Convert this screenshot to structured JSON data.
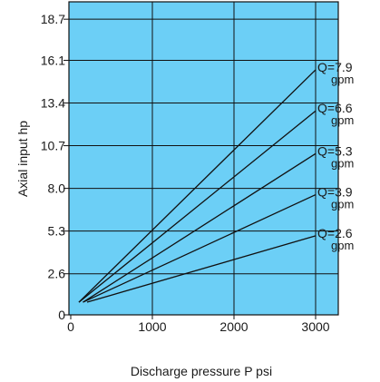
{
  "chart_data": {
    "type": "line",
    "xlabel": "Discharge pressure P psi",
    "ylabel": "Axial input hp",
    "xlim": [
      0,
      3200
    ],
    "ylim": [
      0,
      19.8
    ],
    "x_ticks": [
      0,
      1000,
      2000,
      3000
    ],
    "x_tick_labels": [
      "0",
      "1000",
      "2000",
      "3000"
    ],
    "y_ticks": [
      0,
      2.6,
      5.3,
      8.0,
      10.7,
      13.4,
      16.1,
      18.7
    ],
    "y_tick_labels": [
      "0",
      "2.6",
      "5.3",
      "8.0",
      "10.7",
      "13.4",
      "16.1",
      "18.7"
    ],
    "grid": true,
    "plot_background": "#6ccff6",
    "line_color": "#111111",
    "series": [
      {
        "name": "Q=7.9",
        "unit": "gpm",
        "x": [
          100,
          3000
        ],
        "y": [
          0.8,
          15.5
        ]
      },
      {
        "name": "Q=6.6",
        "unit": "gpm",
        "x": [
          100,
          3000
        ],
        "y": [
          0.8,
          12.9
        ]
      },
      {
        "name": "Q=5.3",
        "unit": "gpm",
        "x": [
          150,
          3000
        ],
        "y": [
          0.8,
          10.2
        ]
      },
      {
        "name": "Q=3.9",
        "unit": "gpm",
        "x": [
          150,
          3000
        ],
        "y": [
          0.8,
          7.6
        ]
      },
      {
        "name": "Q=2.6",
        "unit": "gpm",
        "x": [
          200,
          3000
        ],
        "y": [
          0.8,
          5.0
        ]
      }
    ]
  }
}
